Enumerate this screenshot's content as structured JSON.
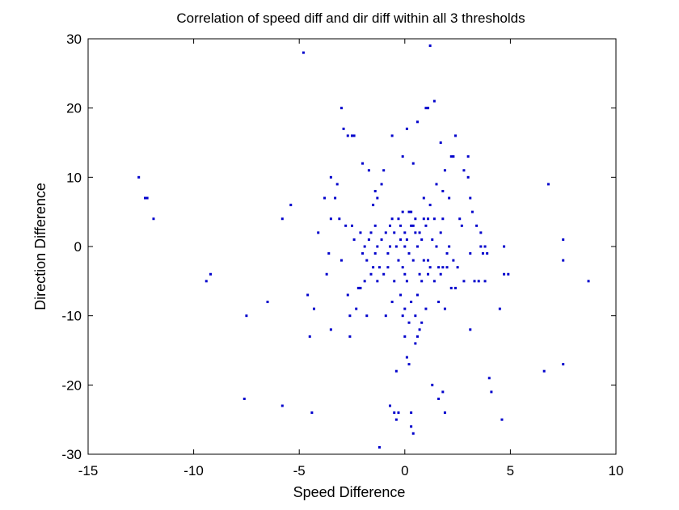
{
  "chart_data": {
    "type": "scatter",
    "title": "Correlation of speed diff and dir diff within all 3 thresholds",
    "xlabel": "Speed Difference",
    "ylabel": "Direction Difference",
    "xlim": [
      -15,
      10
    ],
    "ylim": [
      -30,
      30
    ],
    "xticks": [
      "-15",
      "-10",
      "-5",
      "0",
      "5",
      "10"
    ],
    "yticks": [
      "-30",
      "-20",
      "-10",
      "0",
      "10",
      "20",
      "30"
    ],
    "grid": false,
    "marker_color": "#0000cc",
    "points": [
      [
        -12.6,
        10
      ],
      [
        -12.3,
        7
      ],
      [
        -12.2,
        7
      ],
      [
        -11.9,
        4
      ],
      [
        -9.4,
        -5
      ],
      [
        -9.2,
        -4
      ],
      [
        -7.5,
        -10
      ],
      [
        -7.6,
        -22
      ],
      [
        -6.5,
        -8
      ],
      [
        -5.8,
        -23
      ],
      [
        -5.8,
        4
      ],
      [
        -5.4,
        6
      ],
      [
        -4.8,
        28
      ],
      [
        -4.6,
        -7
      ],
      [
        -4.5,
        -13
      ],
      [
        -4.4,
        -24
      ],
      [
        -4.3,
        -9
      ],
      [
        -4.1,
        2
      ],
      [
        -3.8,
        7
      ],
      [
        -3.7,
        -4
      ],
      [
        -3.6,
        -1
      ],
      [
        -3.5,
        -12
      ],
      [
        -3.5,
        10
      ],
      [
        -3.5,
        4
      ],
      [
        -3.3,
        7
      ],
      [
        -3.2,
        9
      ],
      [
        -3.1,
        4
      ],
      [
        -3.0,
        -2
      ],
      [
        -3.0,
        20
      ],
      [
        -2.9,
        17
      ],
      [
        -2.8,
        3
      ],
      [
        -2.7,
        16
      ],
      [
        -2.7,
        -7
      ],
      [
        -2.6,
        -13
      ],
      [
        -2.6,
        -10
      ],
      [
        -2.5,
        3
      ],
      [
        -2.5,
        16
      ],
      [
        -2.4,
        16
      ],
      [
        -2.4,
        1
      ],
      [
        -2.3,
        -9
      ],
      [
        -2.2,
        -6
      ],
      [
        -2.1,
        -6
      ],
      [
        -2.1,
        2
      ],
      [
        -2.0,
        12
      ],
      [
        -2.0,
        -1
      ],
      [
        -1.9,
        -5
      ],
      [
        -1.9,
        0
      ],
      [
        -1.8,
        -2
      ],
      [
        -1.8,
        -10
      ],
      [
        -1.7,
        11
      ],
      [
        -1.7,
        1
      ],
      [
        -1.6,
        -4
      ],
      [
        -1.6,
        2
      ],
      [
        -1.5,
        6
      ],
      [
        -1.5,
        -3
      ],
      [
        -1.4,
        8
      ],
      [
        -1.4,
        3
      ],
      [
        -1.4,
        -1
      ],
      [
        -1.3,
        7
      ],
      [
        -1.3,
        -5
      ],
      [
        -1.3,
        0
      ],
      [
        -1.2,
        -3
      ],
      [
        -1.2,
        -29
      ],
      [
        -1.1,
        1
      ],
      [
        -1.1,
        9
      ],
      [
        -1.0,
        -4
      ],
      [
        -1.0,
        11
      ],
      [
        -0.9,
        -10
      ],
      [
        -0.9,
        2
      ],
      [
        -0.8,
        -1
      ],
      [
        -0.8,
        -3
      ],
      [
        -0.7,
        0
      ],
      [
        -0.7,
        3
      ],
      [
        -0.7,
        -23
      ],
      [
        -0.6,
        16
      ],
      [
        -0.6,
        -8
      ],
      [
        -0.6,
        4
      ],
      [
        -0.5,
        2
      ],
      [
        -0.5,
        -5
      ],
      [
        -0.5,
        -24
      ],
      [
        -0.4,
        0
      ],
      [
        -0.4,
        -18
      ],
      [
        -0.4,
        -25
      ],
      [
        -0.3,
        4
      ],
      [
        -0.3,
        -2
      ],
      [
        -0.3,
        -24
      ],
      [
        -0.2,
        1
      ],
      [
        -0.2,
        3
      ],
      [
        -0.2,
        -7
      ],
      [
        -0.1,
        13
      ],
      [
        -0.1,
        -3
      ],
      [
        -0.1,
        5
      ],
      [
        -0.1,
        -10
      ],
      [
        0.0,
        -4
      ],
      [
        0.0,
        2
      ],
      [
        0.0,
        -13
      ],
      [
        0.0,
        -9
      ],
      [
        0.0,
        0
      ],
      [
        0.1,
        1
      ],
      [
        0.1,
        17
      ],
      [
        0.1,
        -16
      ],
      [
        0.1,
        -5
      ],
      [
        0.2,
        5
      ],
      [
        0.2,
        -17
      ],
      [
        0.2,
        -1
      ],
      [
        0.2,
        -11
      ],
      [
        0.3,
        3
      ],
      [
        0.3,
        -26
      ],
      [
        0.3,
        5
      ],
      [
        0.3,
        -8
      ],
      [
        0.3,
        -24
      ],
      [
        0.4,
        -27
      ],
      [
        0.4,
        3
      ],
      [
        0.4,
        12
      ],
      [
        0.4,
        -2
      ],
      [
        0.5,
        4
      ],
      [
        0.5,
        -10
      ],
      [
        0.5,
        -14
      ],
      [
        0.5,
        2
      ],
      [
        0.6,
        18
      ],
      [
        0.6,
        -7
      ],
      [
        0.6,
        0
      ],
      [
        0.6,
        -13
      ],
      [
        0.7,
        -4
      ],
      [
        0.7,
        2
      ],
      [
        0.7,
        -12
      ],
      [
        0.8,
        -5
      ],
      [
        0.8,
        1
      ],
      [
        0.8,
        -11
      ],
      [
        0.9,
        4
      ],
      [
        0.9,
        -2
      ],
      [
        0.9,
        7
      ],
      [
        1.0,
        3
      ],
      [
        1.0,
        -9
      ],
      [
        1.0,
        20
      ],
      [
        1.1,
        20
      ],
      [
        1.1,
        -2
      ],
      [
        1.1,
        4
      ],
      [
        1.1,
        -4
      ],
      [
        1.2,
        6
      ],
      [
        1.2,
        -3
      ],
      [
        1.2,
        29
      ],
      [
        1.3,
        1
      ],
      [
        1.3,
        -20
      ],
      [
        1.4,
        21
      ],
      [
        1.4,
        -5
      ],
      [
        1.4,
        4
      ],
      [
        1.5,
        0
      ],
      [
        1.5,
        9
      ],
      [
        1.6,
        -3
      ],
      [
        1.6,
        -8
      ],
      [
        1.6,
        -22
      ],
      [
        1.7,
        15
      ],
      [
        1.7,
        -4
      ],
      [
        1.7,
        2
      ],
      [
        1.8,
        8
      ],
      [
        1.8,
        4
      ],
      [
        1.8,
        -3
      ],
      [
        1.8,
        -21
      ],
      [
        1.9,
        -9
      ],
      [
        1.9,
        -24
      ],
      [
        1.9,
        11
      ],
      [
        2.0,
        -3
      ],
      [
        2.0,
        -1
      ],
      [
        2.1,
        7
      ],
      [
        2.1,
        0
      ],
      [
        2.2,
        -6
      ],
      [
        2.2,
        13
      ],
      [
        2.3,
        -2
      ],
      [
        2.3,
        13
      ],
      [
        2.4,
        16
      ],
      [
        2.4,
        -6
      ],
      [
        2.5,
        -3
      ],
      [
        2.6,
        4
      ],
      [
        2.7,
        3
      ],
      [
        2.8,
        11
      ],
      [
        2.8,
        -5
      ],
      [
        3.0,
        10
      ],
      [
        3.0,
        13
      ],
      [
        3.1,
        -12
      ],
      [
        3.1,
        -1
      ],
      [
        3.1,
        7
      ],
      [
        3.2,
        5
      ],
      [
        3.3,
        -5
      ],
      [
        3.4,
        3
      ],
      [
        3.5,
        -5
      ],
      [
        3.6,
        2
      ],
      [
        3.6,
        0
      ],
      [
        3.7,
        -1
      ],
      [
        3.8,
        -5
      ],
      [
        3.8,
        0
      ],
      [
        3.9,
        -1
      ],
      [
        4.0,
        -19
      ],
      [
        4.1,
        -21
      ],
      [
        4.5,
        -9
      ],
      [
        4.6,
        -25
      ],
      [
        4.7,
        0
      ],
      [
        4.7,
        -4
      ],
      [
        4.9,
        -4
      ],
      [
        6.6,
        -18
      ],
      [
        6.8,
        9
      ],
      [
        7.5,
        1
      ],
      [
        7.5,
        -2
      ],
      [
        7.5,
        -17
      ],
      [
        8.7,
        -5
      ]
    ]
  }
}
